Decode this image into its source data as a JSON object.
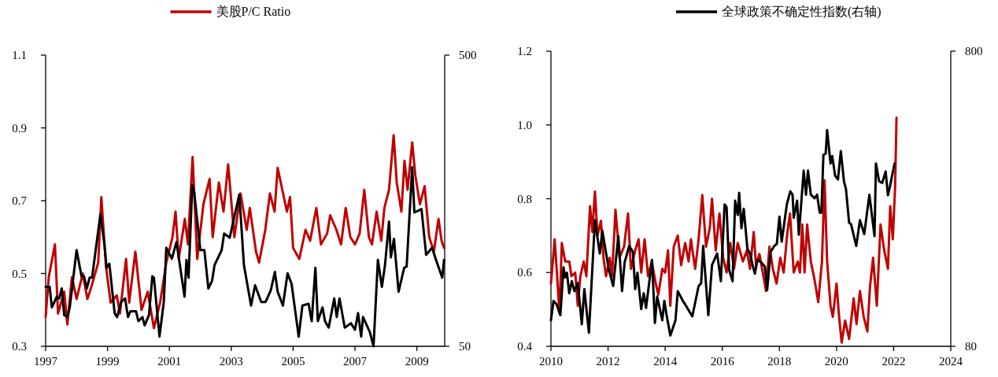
{
  "chart_data": [
    {
      "type": "line",
      "xlim": [
        1997,
        2009.9
      ],
      "xticks": [
        1997,
        1999,
        2001,
        2003,
        2005,
        2007,
        2009
      ],
      "ylim": [
        0.3,
        1.1
      ],
      "yticks": [
        {
          "value": 0.3,
          "label": "0.3"
        },
        {
          "value": 0.5,
          "label": "0.5"
        },
        {
          "value": 0.7,
          "label": "0.7"
        },
        {
          "value": 0.9,
          "label": "0.9"
        },
        {
          "value": 1.1,
          "label": "1.1"
        }
      ],
      "y2lim": [
        50,
        500
      ],
      "y2ticks": [
        50,
        500
      ],
      "log": "y2",
      "legend": "top",
      "series": [
        {
          "name": "美股P/C Ratio",
          "color": "#c00000",
          "x": [
            1997.0,
            1997.1,
            1997.3,
            1997.4,
            1997.6,
            1997.7,
            1997.85,
            1998.0,
            1998.2,
            1998.35,
            1998.5,
            1998.7,
            1998.8,
            1998.95,
            1999.1,
            1999.3,
            1999.4,
            1999.6,
            1999.7,
            1999.9,
            2000.1,
            2000.3,
            2000.5,
            2000.7,
            2000.9,
            2001.1,
            2001.2,
            2001.3,
            2001.5,
            2001.6,
            2001.75,
            2001.9,
            2002.1,
            2002.3,
            2002.4,
            2002.6,
            2002.75,
            2002.9,
            2003.1,
            2003.3,
            2003.5,
            2003.6,
            2003.8,
            2003.9,
            2004.1,
            2004.25,
            2004.4,
            2004.5,
            2004.65,
            2004.8,
            2004.9,
            2005.0,
            2005.2,
            2005.4,
            2005.55,
            2005.75,
            2005.9,
            2006.1,
            2006.2,
            2006.4,
            2006.55,
            2006.7,
            2006.85,
            2007.0,
            2007.15,
            2007.3,
            2007.45,
            2007.55,
            2007.7,
            2007.85,
            2007.95,
            2008.1,
            2008.25,
            2008.35,
            2008.5,
            2008.6,
            2008.7,
            2008.85,
            2008.95,
            2009.1,
            2009.25,
            2009.4,
            2009.55,
            2009.7,
            2009.8,
            2009.88
          ],
          "values": [
            0.38,
            0.49,
            0.58,
            0.39,
            0.45,
            0.36,
            0.49,
            0.43,
            0.5,
            0.43,
            0.47,
            0.53,
            0.71,
            0.52,
            0.42,
            0.44,
            0.39,
            0.54,
            0.42,
            0.56,
            0.4,
            0.45,
            0.35,
            0.42,
            0.53,
            0.6,
            0.67,
            0.54,
            0.65,
            0.58,
            0.82,
            0.54,
            0.69,
            0.76,
            0.6,
            0.75,
            0.67,
            0.8,
            0.6,
            0.72,
            0.62,
            0.68,
            0.56,
            0.53,
            0.62,
            0.72,
            0.67,
            0.79,
            0.73,
            0.67,
            0.71,
            0.57,
            0.54,
            0.62,
            0.59,
            0.68,
            0.58,
            0.61,
            0.66,
            0.62,
            0.58,
            0.68,
            0.6,
            0.58,
            0.61,
            0.73,
            0.6,
            0.58,
            0.67,
            0.59,
            0.68,
            0.73,
            0.88,
            0.75,
            0.67,
            0.81,
            0.73,
            0.86,
            0.77,
            0.69,
            0.74,
            0.6,
            0.56,
            0.65,
            0.59,
            0.57
          ]
        },
        {
          "color": "#000000",
          "axis": "y2",
          "x": [
            1997.0,
            1997.13,
            1997.2,
            1997.36,
            1997.44,
            1997.52,
            1997.6,
            1997.7,
            1997.78,
            1998.0,
            1998.16,
            1998.24,
            1998.33,
            1998.42,
            1998.5,
            1998.77,
            1998.9,
            1998.97,
            1999.06,
            1999.23,
            1999.31,
            1999.44,
            1999.57,
            1999.66,
            1999.74,
            1999.92,
            2000.0,
            2000.13,
            2000.2,
            2000.34,
            2000.45,
            2000.5,
            2000.68,
            2000.82,
            2000.9,
            2001.08,
            2001.23,
            2001.49,
            2001.55,
            2001.62,
            2001.74,
            2001.8,
            2002.0,
            2002.13,
            2002.26,
            2002.38,
            2002.46,
            2002.69,
            2002.77,
            2002.95,
            2003.26,
            2003.41,
            2003.64,
            2003.77,
            2003.97,
            2004.11,
            2004.28,
            2004.41,
            2004.5,
            2004.67,
            2004.82,
            2004.95,
            2005.18,
            2005.3,
            2005.5,
            2005.6,
            2005.72,
            2005.8,
            2005.95,
            2006.03,
            2006.15,
            2006.33,
            2006.41,
            2006.5,
            2006.67,
            2006.87,
            2007.0,
            2007.1,
            2007.2,
            2007.26,
            2007.48,
            2007.6,
            2007.74,
            2007.87,
            2007.97,
            2008.1,
            2008.16,
            2008.26,
            2008.41,
            2008.59,
            2008.67,
            2008.85,
            2008.92,
            2009.15,
            2009.3,
            2009.49,
            2009.62,
            2009.82,
            2009.88
          ],
          "values": [
            80,
            80,
            68,
            74,
            73,
            79,
            64,
            63,
            68,
            107,
            87,
            87,
            79,
            86,
            86,
            142,
            112,
            93,
            96,
            65,
            63,
            71,
            73,
            63,
            66,
            66,
            61,
            63,
            59,
            64,
            87,
            86,
            54,
            71,
            109,
            100,
            114,
            74,
            99,
            86,
            179,
            170,
            107,
            107,
            79,
            84,
            95,
            107,
            122,
            118,
            166,
            95,
            69,
            81,
            71,
            71,
            78,
            90,
            77,
            69,
            89,
            82,
            54,
            69,
            70,
            61,
            93,
            61,
            68,
            61,
            58,
            73,
            63,
            73,
            58,
            60,
            57,
            65,
            54,
            63,
            56,
            50,
            99,
            80,
            95,
            134,
            101,
            117,
            77,
            93,
            94,
            206,
            144,
            148,
            103,
            109,
            99,
            86,
            99
          ]
        }
      ]
    },
    {
      "type": "line",
      "xlim": [
        2010,
        2024
      ],
      "xticks": [
        2010,
        2012,
        2014,
        2016,
        2018,
        2020,
        2022,
        2024
      ],
      "ylim": [
        0.4,
        1.2
      ],
      "yticks": [
        {
          "value": 0.4,
          "label": "0.4"
        },
        {
          "value": 0.6,
          "label": "0.6"
        },
        {
          "value": 0.8,
          "label": "0.8"
        },
        {
          "value": 1.0,
          "label": "1.0"
        },
        {
          "value": 1.2,
          "label": "1.2"
        }
      ],
      "y2lim": [
        80,
        800
      ],
      "y2ticks": [
        80,
        800
      ],
      "log": "y2",
      "legend": "top",
      "series": [
        {
          "color": "#c00000",
          "x": [
            2010.0,
            2010.13,
            2010.2,
            2010.3,
            2010.38,
            2010.5,
            2010.64,
            2010.72,
            2010.85,
            2010.94,
            2011.03,
            2011.15,
            2011.24,
            2011.37,
            2011.45,
            2011.54,
            2011.63,
            2011.75,
            2011.84,
            2011.93,
            2012.06,
            2012.14,
            2012.26,
            2012.4,
            2012.56,
            2012.7,
            2012.8,
            2012.95,
            2013.07,
            2013.16,
            2013.28,
            2013.4,
            2013.53,
            2013.67,
            2013.76,
            2013.9,
            2014.0,
            2014.1,
            2014.18,
            2014.3,
            2014.44,
            2014.56,
            2014.7,
            2014.82,
            2014.9,
            2015.05,
            2015.17,
            2015.3,
            2015.43,
            2015.56,
            2015.64,
            2015.77,
            2015.9,
            2016.03,
            2016.15,
            2016.28,
            2016.41,
            2016.54,
            2016.72,
            2016.86,
            2016.97,
            2017.1,
            2017.18,
            2017.3,
            2017.44,
            2017.53,
            2017.65,
            2017.77,
            2017.9,
            2018.03,
            2018.15,
            2018.28,
            2018.37,
            2018.5,
            2018.64,
            2018.72,
            2018.8,
            2018.88,
            2018.97,
            2019.1,
            2019.23,
            2019.36,
            2019.49,
            2019.58,
            2019.67,
            2019.79,
            2019.87,
            2020.0,
            2020.09,
            2020.18,
            2020.3,
            2020.44,
            2020.6,
            2020.7,
            2020.82,
            2020.95,
            2021.08,
            2021.17,
            2021.28,
            2021.41,
            2021.54,
            2021.67,
            2021.8,
            2021.88,
            2021.97,
            2022.05,
            2022.1
          ],
          "values": [
            0.57,
            0.69,
            0.61,
            0.49,
            0.68,
            0.63,
            0.63,
            0.59,
            0.6,
            0.51,
            0.59,
            0.63,
            0.59,
            0.78,
            0.71,
            0.82,
            0.7,
            0.74,
            0.64,
            0.59,
            0.64,
            0.59,
            0.77,
            0.64,
            0.67,
            0.76,
            0.61,
            0.66,
            0.69,
            0.6,
            0.69,
            0.59,
            0.63,
            0.57,
            0.54,
            0.61,
            0.6,
            0.66,
            0.51,
            0.67,
            0.7,
            0.62,
            0.68,
            0.63,
            0.69,
            0.61,
            0.69,
            0.81,
            0.67,
            0.72,
            0.8,
            0.66,
            0.76,
            0.64,
            0.6,
            0.68,
            0.61,
            0.68,
            0.63,
            0.66,
            0.61,
            0.71,
            0.62,
            0.65,
            0.59,
            0.55,
            0.67,
            0.61,
            0.57,
            0.64,
            0.6,
            0.71,
            0.76,
            0.6,
            0.63,
            0.6,
            0.73,
            0.6,
            0.73,
            0.63,
            0.58,
            0.52,
            0.63,
            0.85,
            0.63,
            0.51,
            0.48,
            0.57,
            0.48,
            0.41,
            0.47,
            0.42,
            0.53,
            0.46,
            0.55,
            0.48,
            0.44,
            0.56,
            0.64,
            0.51,
            0.73,
            0.66,
            0.61,
            0.78,
            0.69,
            0.83,
            1.02
          ]
        },
        {
          "name": "全球政策不确定性指数(右轴)",
          "color": "#000000",
          "axis": "y2",
          "x": [
            2010.0,
            2010.09,
            2010.2,
            2010.33,
            2010.44,
            2010.5,
            2010.56,
            2010.64,
            2010.73,
            2010.82,
            2010.94,
            2011.08,
            2011.17,
            2011.33,
            2011.54,
            2011.71,
            2011.8,
            2012.03,
            2012.18,
            2012.36,
            2012.49,
            2012.58,
            2012.74,
            2012.87,
            2012.95,
            2013.03,
            2013.16,
            2013.25,
            2013.33,
            2013.54,
            2013.64,
            2013.72,
            2013.9,
            2013.97,
            2014.05,
            2014.18,
            2014.36,
            2014.44,
            2014.62,
            2014.7,
            2014.87,
            2014.95,
            2015.17,
            2015.26,
            2015.33,
            2015.51,
            2015.64,
            2015.82,
            2015.95,
            2016.08,
            2016.15,
            2016.24,
            2016.36,
            2016.45,
            2016.54,
            2016.59,
            2016.67,
            2016.75,
            2016.88,
            2016.97,
            2017.06,
            2017.14,
            2017.23,
            2017.36,
            2017.49,
            2017.57,
            2017.69,
            2017.82,
            2017.91,
            2018.0,
            2018.08,
            2018.26,
            2018.38,
            2018.46,
            2018.5,
            2018.62,
            2018.68,
            2018.85,
            2018.93,
            2019.0,
            2019.1,
            2019.23,
            2019.32,
            2019.41,
            2019.47,
            2019.54,
            2019.62,
            2019.67,
            2019.79,
            2019.85,
            2019.95,
            2020.05,
            2020.15,
            2020.26,
            2020.33,
            2020.44,
            2020.51,
            2020.69,
            2020.82,
            2020.97,
            2021.15,
            2021.33,
            2021.38,
            2021.49,
            2021.6,
            2021.72,
            2021.8,
            2021.87,
            2022.03
          ],
          "values": [
            98,
            114,
            111,
            102,
            148,
            137,
            142,
            121,
            133,
            123,
            131,
            95,
            125,
            89,
            214,
            165,
            197,
            145,
            128,
            189,
            123,
            154,
            175,
            167,
            125,
            142,
            107,
            121,
            108,
            157,
            96,
            118,
            98,
            114,
            102,
            87,
            98,
            123,
            114,
            111,
            104,
            101,
            128,
            131,
            175,
            102,
            151,
            165,
            133,
            242,
            237,
            145,
            133,
            249,
            223,
            265,
            201,
            234,
            171,
            165,
            151,
            141,
            157,
            154,
            149,
            124,
            167,
            175,
            178,
            220,
            181,
            242,
            268,
            261,
            218,
            249,
            191,
            315,
            261,
            315,
            261,
            254,
            261,
            227,
            227,
            356,
            360,
            432,
            333,
            353,
            303,
            294,
            367,
            290,
            273,
            210,
            207,
            175,
            214,
            192,
            261,
            189,
            333,
            290,
            286,
            313,
            260,
            278,
            333
          ]
        }
      ]
    }
  ]
}
